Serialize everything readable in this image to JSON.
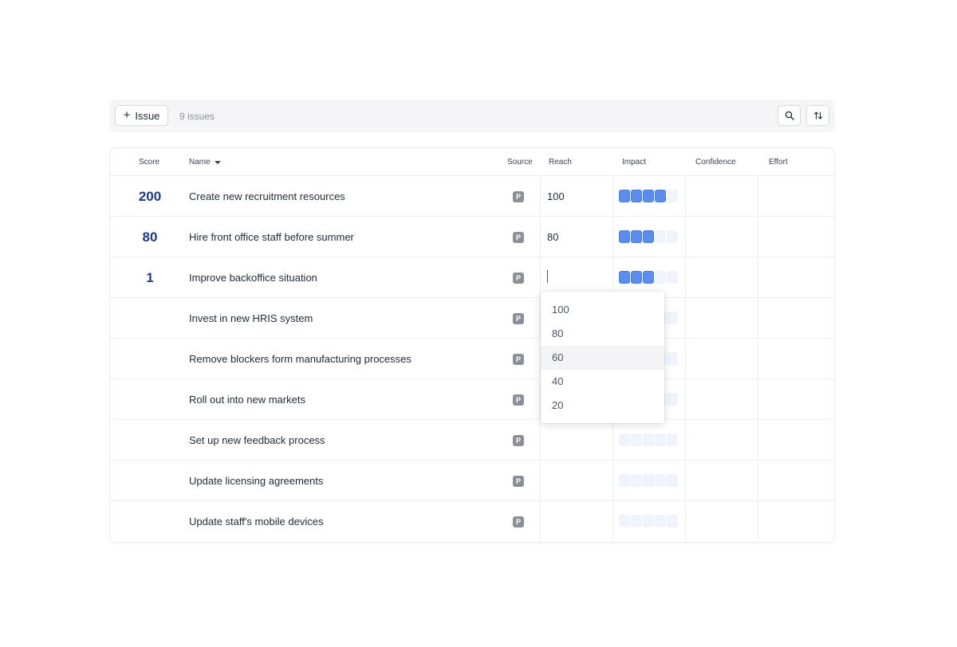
{
  "toolbar": {
    "add_button_label": "Issue",
    "issue_count": "9 issues"
  },
  "columns": {
    "score": "Score",
    "name": "Name",
    "source": "Source",
    "reach": "Reach",
    "impact": "Impact",
    "confidence": "Confidence",
    "effort": "Effort"
  },
  "rows": [
    {
      "score": "200",
      "name": "Create new recruitment resources",
      "source": "P",
      "reach": "100",
      "impact": 4
    },
    {
      "score": "80",
      "name": "Hire front office staff before summer",
      "source": "P",
      "reach": "80",
      "impact": 3
    },
    {
      "score": "1",
      "name": "Improve backoffice situation",
      "source": "P",
      "reach": "",
      "impact": 3
    },
    {
      "score": "",
      "name": "Invest in new HRIS system",
      "source": "P",
      "reach": "",
      "impact": 0
    },
    {
      "score": "",
      "name": "Remove blockers form manufacturing processes",
      "source": "P",
      "reach": "",
      "impact": 0
    },
    {
      "score": "",
      "name": "Roll out into new markets",
      "source": "P",
      "reach": "",
      "impact": 0
    },
    {
      "score": "",
      "name": "Set up new feedback process",
      "source": "P",
      "reach": "",
      "impact": 0
    },
    {
      "score": "",
      "name": "Update licensing agreements",
      "source": "P",
      "reach": "",
      "impact": 0
    },
    {
      "score": "",
      "name": "Update staff's mobile devices",
      "source": "P",
      "reach": "",
      "impact": 0
    }
  ],
  "impact_max": 5,
  "reach_dropdown": {
    "options": [
      "100",
      "80",
      "60",
      "40",
      "20"
    ],
    "highlighted": "60"
  },
  "colors": {
    "accent": "#5b8def",
    "score_text": "#1d3a8a",
    "pip_empty": "#eff3fc"
  }
}
